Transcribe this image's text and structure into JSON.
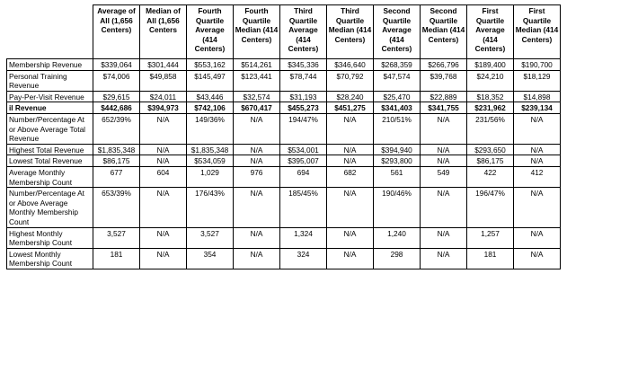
{
  "columns": [
    "",
    "Average of All (1,656 Centers)",
    "Median of All (1,656 Centers",
    "Fourth Quartile Average (414 Centers)",
    "Fourth Quartile Median (414 Centers)",
    "Third Quartile Average (414 Centers)",
    "Third Quartile Median (414 Centers)",
    "Second Quartile Average (414 Centers)",
    "Second Quartile Median (414 Centers)",
    "First Quartile Average (414 Centers)",
    "First Quartile Median (414 Centers)"
  ],
  "rows": [
    {
      "label": "Membership Revenue",
      "cells": [
        "$339,064",
        "$301,444",
        "$553,162",
        "$514,261",
        "$345,336",
        "$346,640",
        "$268,359",
        "$266,796",
        "$189,400",
        "$190,700"
      ]
    },
    {
      "label": "Personal Training Revenue",
      "cells": [
        "$74,006",
        "$49,858",
        "$145,497",
        "$123,441",
        "$78,744",
        "$70,792",
        "$47,574",
        "$39,768",
        "$24,210",
        "$18,129"
      ]
    },
    {
      "label": "Pay-Per-Visit Revenue",
      "cells": [
        "$29,615",
        "$24,011",
        "$43,446",
        "$32,574",
        "$31,193",
        "$28,240",
        "$25,470",
        "$22,889",
        "$18,352",
        "$14,898"
      ]
    },
    {
      "label": "il Revenue",
      "bold": true,
      "cells": [
        "$442,686",
        "$394,973",
        "$742,106",
        "$670,417",
        "$455,273",
        "$451,275",
        "$341,403",
        "$341,755",
        "$231,962",
        "$239,134"
      ]
    },
    {
      "label": "Number/Percentage At or Above Average Total Revenue",
      "cells": [
        "652/39%",
        "N/A",
        "149/36%",
        "N/A",
        "194/47%",
        "N/A",
        "210/51%",
        "N/A",
        "231/56%",
        "N/A"
      ]
    },
    {
      "label": "Highest Total Revenue",
      "cells": [
        "$1,835,348",
        "N/A",
        "$1,835,348",
        "N/A",
        "$534,001",
        "N/A",
        "$394,940",
        "N/A",
        "$293,650",
        "N/A"
      ]
    },
    {
      "label": "Lowest Total Revenue",
      "cells": [
        "$86,175",
        "N/A",
        "$534,059",
        "N/A",
        "$395,007",
        "N/A",
        "$293,800",
        "N/A",
        "$86,175",
        "N/A"
      ]
    },
    {
      "label": "Average Monthly Membership Count",
      "cells": [
        "677",
        "604",
        "1,029",
        "976",
        "694",
        "682",
        "561",
        "549",
        "422",
        "412"
      ]
    },
    {
      "label": "Number/Percentage At or Above Average Monthly Membership Count",
      "cells": [
        "653/39%",
        "N/A",
        "176/43%",
        "N/A",
        "185/45%",
        "N/A",
        "190/46%",
        "N/A",
        "196/47%",
        "N/A"
      ]
    },
    {
      "label": "Highest Monthly Membership Count",
      "cells": [
        "3,527",
        "N/A",
        "3,527",
        "N/A",
        "1,324",
        "N/A",
        "1,240",
        "N/A",
        "1,257",
        "N/A"
      ]
    },
    {
      "label": "Lowest Monthly Membership Count",
      "cells": [
        "181",
        "N/A",
        "354",
        "N/A",
        "324",
        "N/A",
        "298",
        "N/A",
        "181",
        "N/A"
      ]
    }
  ]
}
